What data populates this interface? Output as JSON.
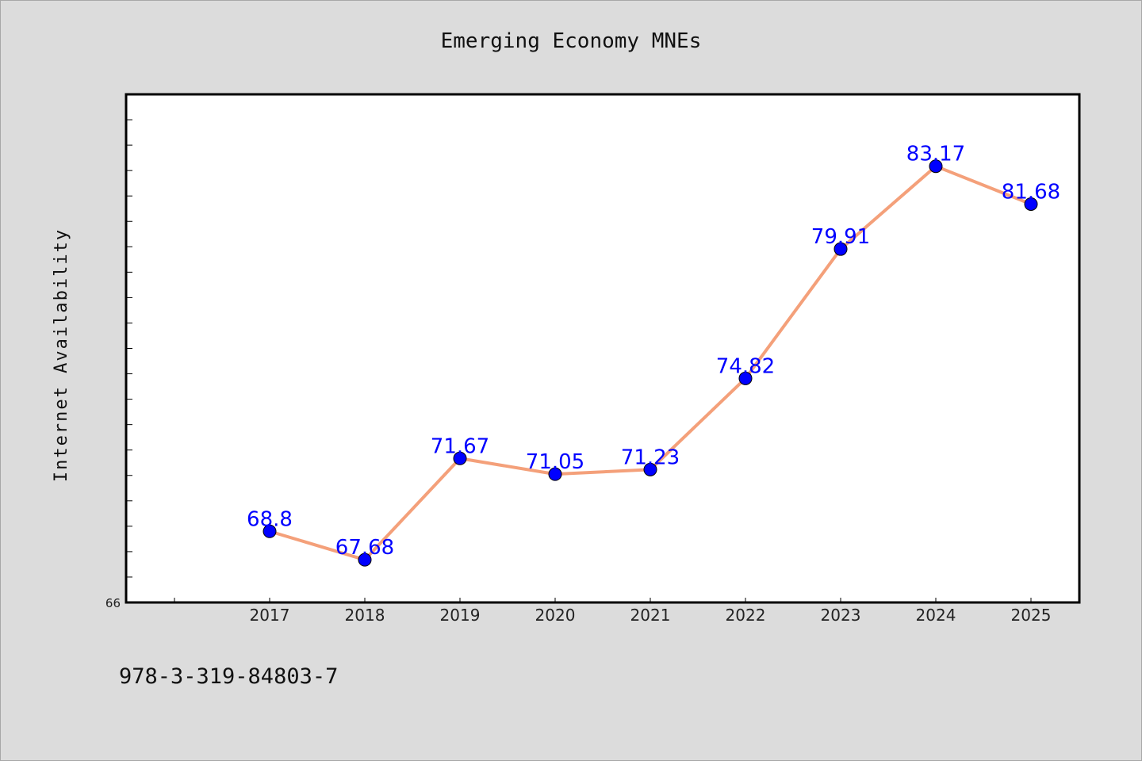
{
  "footer_text": "978-3-319-84803-7",
  "chart_data": {
    "type": "line",
    "title": "Emerging Economy MNEs",
    "xlabel": "",
    "ylabel": "Internet Availability",
    "categories": [
      "2017",
      "2018",
      "2019",
      "2020",
      "2021",
      "2022",
      "2023",
      "2024",
      "2025"
    ],
    "series": [
      {
        "values": [
          68.8,
          67.68,
          71.67,
          71.05,
          71.23,
          74.82,
          79.91,
          83.17,
          81.68
        ]
      }
    ],
    "value_labels": [
      "68.8",
      "67.68",
      "71.67",
      "71.05",
      "71.23",
      "74.82",
      "79.91",
      "83.17",
      "81.68"
    ],
    "ylim": [
      66,
      86
    ],
    "y_tick_labels": [
      "66"
    ],
    "grid": false,
    "legend": "none",
    "colors": {
      "line": "#f4a07a",
      "marker": "#0000ff",
      "label": "#0000ff",
      "plot_background": "#ffffff",
      "page_background": "#dcdcdc"
    }
  }
}
